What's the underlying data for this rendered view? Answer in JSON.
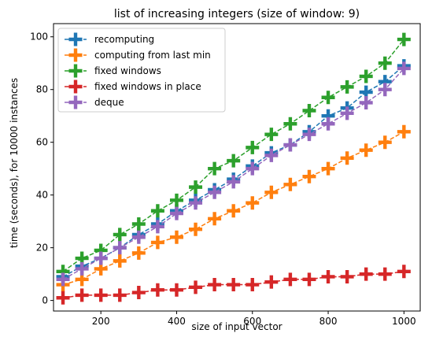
{
  "chart_data": {
    "type": "line",
    "title": "list of increasing integers (size of window: 9)",
    "xlabel": "size of input vector",
    "ylabel": "time (seconds), for 10000 instances",
    "xlim": [
      75,
      1045
    ],
    "ylim": [
      -4,
      105
    ],
    "x_ticks": [
      200,
      400,
      600,
      800,
      1000
    ],
    "y_ticks": [
      0,
      20,
      40,
      60,
      80,
      100
    ],
    "grid": false,
    "legend_position": "top-left",
    "line_style": "dashed",
    "marker": "plus",
    "x": [
      100,
      150,
      200,
      250,
      300,
      350,
      400,
      450,
      500,
      550,
      600,
      650,
      700,
      750,
      800,
      850,
      900,
      950,
      1000
    ],
    "series": [
      {
        "name": "recomputing",
        "color": "#1f77b4",
        "values": [
          9,
          13,
          16,
          20,
          25,
          29,
          34,
          38,
          42,
          46,
          51,
          56,
          59,
          64,
          70,
          73,
          79,
          83,
          89
        ]
      },
      {
        "name": "computing from last min",
        "color": "#ff7f0e",
        "values": [
          6,
          8,
          12,
          15,
          18,
          22,
          24,
          27,
          31,
          34,
          37,
          41,
          44,
          47,
          50,
          54,
          57,
          60,
          64
        ]
      },
      {
        "name": "fixed windows",
        "color": "#2ca02c",
        "values": [
          11,
          16,
          19,
          25,
          29,
          34,
          38,
          43,
          50,
          53,
          58,
          63,
          67,
          72,
          77,
          81,
          85,
          90,
          99
        ]
      },
      {
        "name": "fixed windows in place",
        "color": "#d62728",
        "values": [
          1,
          2,
          2,
          2,
          3,
          4,
          4,
          5,
          6,
          6,
          6,
          7,
          8,
          8,
          9,
          9,
          10,
          10,
          11
        ]
      },
      {
        "name": "deque",
        "color": "#9467bd",
        "values": [
          8,
          12,
          16,
          20,
          24,
          28,
          33,
          37,
          41,
          45,
          50,
          55,
          59,
          63,
          67,
          71,
          75,
          80,
          88
        ]
      }
    ]
  }
}
